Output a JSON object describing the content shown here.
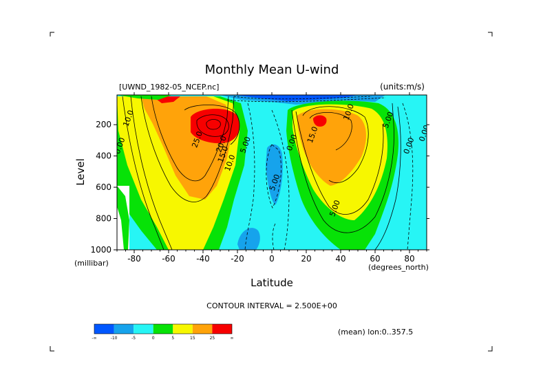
{
  "chart_data": {
    "type": "contour",
    "title": "Monthly Mean U-wind",
    "dataset_label": "[UWND_1982-05_NCEP.nc]",
    "units_label": "(units:m/s)",
    "xlabel": "Latitude",
    "xunit": "(degrees_north)",
    "ylabel": "Level",
    "yunit": "(millibar)",
    "xlim": [
      -90,
      90
    ],
    "ylim": [
      1000,
      10
    ],
    "x_ticks": [
      -80,
      -60,
      -40,
      -20,
      0,
      20,
      40,
      60,
      80
    ],
    "y_ticks": [
      200,
      400,
      600,
      800,
      1000
    ],
    "contour_interval_text": "CONTOUR INTERVAL = 2.500E+00",
    "mean_text": "(mean) lon:0..357.5",
    "contour_labels": [
      {
        "text": "10.0",
        "x": -82,
        "y": 165
      },
      {
        "text": "25.0",
        "x": -42,
        "y": 300
      },
      {
        "text": "20.0",
        "x": -28,
        "y": 330
      },
      {
        "text": "15.0",
        "x": -27,
        "y": 395
      },
      {
        "text": "10.0",
        "x": -23,
        "y": 450
      },
      {
        "text": "5.00",
        "x": -14,
        "y": 335
      },
      {
        "text": "0.00",
        "x": -87,
        "y": 340
      },
      {
        "text": "5.00",
        "x": 3,
        "y": 575
      },
      {
        "text": "0.00",
        "x": 13,
        "y": 320
      },
      {
        "text": "15.0",
        "x": 25,
        "y": 270
      },
      {
        "text": "10.0",
        "x": 46,
        "y": 125
      },
      {
        "text": "5.00",
        "x": 69,
        "y": 175
      },
      {
        "text": "0.00",
        "x": 81,
        "y": 340
      },
      {
        "text": "0.00",
        "x": 90,
        "y": 260
      },
      {
        "text": "5.00",
        "x": 38,
        "y": 740
      }
    ],
    "colorbar": {
      "colors": [
        "#0057ff",
        "#16a3ec",
        "#27f5f5",
        "#07e207",
        "#f7f700",
        "#ffa30a",
        "#f70000"
      ],
      "labels": [
        "-∞",
        "-10",
        "-5",
        "0",
        "5",
        "15",
        "25",
        "∞"
      ]
    }
  }
}
